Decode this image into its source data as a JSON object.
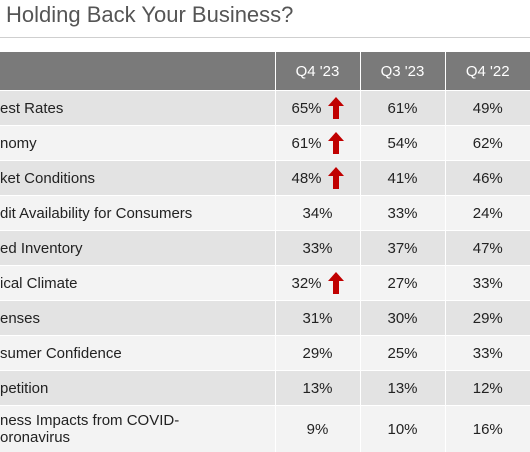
{
  "title": "Holding Back Your Business?",
  "colors": {
    "header_bg": "#7a7a7a",
    "row_odd": "#e3e3e3",
    "row_even": "#f3f3f3",
    "arrow": "#c00000"
  },
  "chart_data": {
    "type": "table",
    "columns": [
      "",
      "Q4 '23",
      "Q3 '23",
      "Q4 '22"
    ],
    "rows": [
      {
        "label": "est Rates",
        "values": [
          "65%",
          "61%",
          "49%"
        ],
        "up": true
      },
      {
        "label": "nomy",
        "values": [
          "61%",
          "54%",
          "62%"
        ],
        "up": true
      },
      {
        "label": "ket Conditions",
        "values": [
          "48%",
          "41%",
          "46%"
        ],
        "up": true
      },
      {
        "label": "dit Availability for Consumers",
        "values": [
          "34%",
          "33%",
          "24%"
        ],
        "up": false
      },
      {
        "label": "ed Inventory",
        "values": [
          "33%",
          "37%",
          "47%"
        ],
        "up": false
      },
      {
        "label": "ical Climate",
        "values": [
          "32%",
          "27%",
          "33%"
        ],
        "up": true
      },
      {
        "label": "enses",
        "values": [
          "31%",
          "30%",
          "29%"
        ],
        "up": false
      },
      {
        "label": "sumer Confidence",
        "values": [
          "29%",
          "25%",
          "33%"
        ],
        "up": false
      },
      {
        "label": "petition",
        "values": [
          "13%",
          "13%",
          "12%"
        ],
        "up": false
      },
      {
        "label": "ness Impacts from COVID-\noronavirus",
        "values": [
          "9%",
          "10%",
          "16%"
        ],
        "up": false
      }
    ]
  }
}
